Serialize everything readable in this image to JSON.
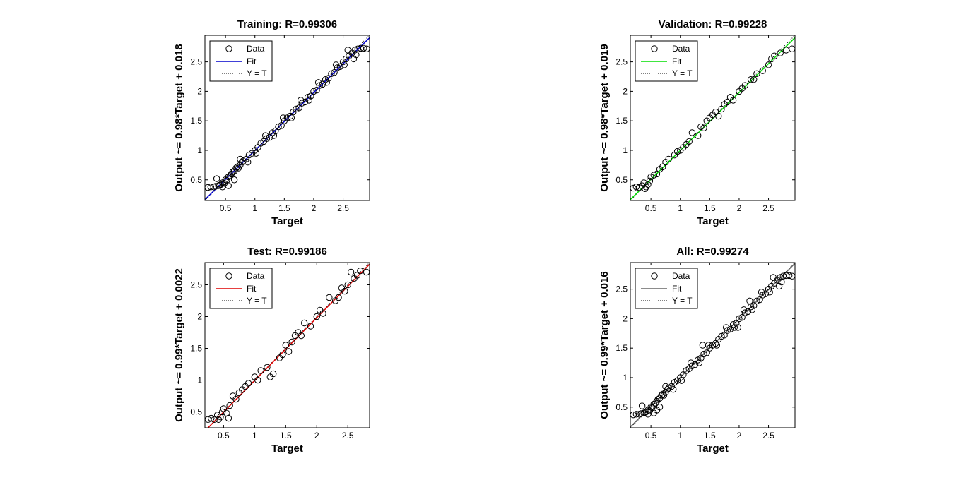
{
  "figure": {
    "background": "#ffffff"
  },
  "chart_data": [
    {
      "type": "scatter",
      "title": "Training: R=0.99306",
      "xlabel": "Target",
      "ylabel": "Output ~= 0.98*Target + 0.018",
      "xlim": [
        0.15,
        2.95
      ],
      "ylim": [
        0.15,
        2.95
      ],
      "xticks": [
        0.5,
        1,
        1.5,
        2,
        2.5
      ],
      "yticks": [
        0.5,
        1,
        1.5,
        2,
        2.5
      ],
      "xtick_labels": [
        "0.5",
        "1",
        "1.5",
        "2",
        "2.5"
      ],
      "ytick_labels": [
        "0.5",
        "1",
        "1.5",
        "2",
        "2.5"
      ],
      "fit": {
        "slope": 0.98,
        "intercept": 0.018,
        "color": "#0000cc"
      },
      "legend": {
        "position": "top-left",
        "entries": [
          "Data",
          "Fit",
          "Y = T"
        ]
      },
      "grid": false,
      "series": [
        {
          "name": "Data",
          "kind": "markers",
          "color": "#000000",
          "x": [
            0.2,
            0.25,
            0.3,
            0.33,
            0.38,
            0.4,
            0.42,
            0.45,
            0.48,
            0.5,
            0.52,
            0.55,
            0.58,
            0.6,
            0.62,
            0.65,
            0.68,
            0.7,
            0.72,
            0.75,
            0.78,
            0.8,
            0.85,
            0.9,
            0.95,
            1.0,
            1.05,
            1.1,
            1.15,
            1.2,
            1.25,
            1.3,
            1.35,
            1.4,
            1.45,
            1.5,
            1.55,
            1.6,
            1.65,
            1.7,
            1.75,
            1.8,
            1.85,
            1.9,
            1.95,
            2.0,
            2.05,
            2.1,
            2.15,
            2.2,
            2.25,
            2.3,
            2.35,
            2.4,
            2.45,
            2.5,
            2.55,
            2.6,
            2.65,
            2.7,
            2.75,
            2.8,
            2.85,
            2.9,
            0.35,
            0.45,
            0.55,
            0.65,
            0.75,
            0.88,
            1.02,
            1.18,
            1.32,
            1.48,
            1.62,
            1.78,
            1.92,
            2.08,
            2.22,
            2.38,
            2.52,
            2.68,
            2.58,
            2.72
          ],
          "y": [
            0.37,
            0.38,
            0.38,
            0.39,
            0.4,
            0.41,
            0.42,
            0.45,
            0.44,
            0.5,
            0.49,
            0.55,
            0.57,
            0.6,
            0.63,
            0.65,
            0.7,
            0.72,
            0.7,
            0.75,
            0.8,
            0.82,
            0.85,
            0.92,
            0.95,
            1.0,
            1.05,
            1.12,
            1.15,
            1.2,
            1.22,
            1.3,
            1.33,
            1.4,
            1.42,
            1.5,
            1.55,
            1.58,
            1.65,
            1.7,
            1.72,
            1.8,
            1.82,
            1.9,
            1.92,
            2.0,
            2.02,
            2.1,
            2.12,
            2.2,
            2.22,
            2.3,
            2.32,
            2.4,
            2.42,
            2.5,
            2.55,
            2.6,
            2.65,
            2.7,
            2.72,
            2.73,
            2.73,
            2.72,
            0.52,
            0.38,
            0.4,
            0.5,
            0.85,
            0.8,
            0.95,
            1.25,
            1.25,
            1.55,
            1.55,
            1.85,
            1.85,
            2.15,
            2.15,
            2.45,
            2.45,
            2.55,
            2.7,
            2.62
          ]
        }
      ]
    },
    {
      "type": "scatter",
      "title": "Validation: R=0.99228",
      "xlabel": "Target",
      "ylabel": "Output ~= 0.98*Target + 0.019",
      "xlim": [
        0.15,
        2.95
      ],
      "ylim": [
        0.15,
        2.95
      ],
      "xticks": [
        0.5,
        1,
        1.5,
        2,
        2.5
      ],
      "yticks": [
        0.5,
        1,
        1.5,
        2,
        2.5
      ],
      "xtick_labels": [
        "0.5",
        "1",
        "1.5",
        "2",
        "2.5"
      ],
      "ytick_labels": [
        "0.5",
        "1",
        "1.5",
        "2",
        "2.5"
      ],
      "fit": {
        "slope": 0.98,
        "intercept": 0.019,
        "color": "#00dd00"
      },
      "legend": {
        "position": "top-left",
        "entries": [
          "Data",
          "Fit",
          "Y = T"
        ]
      },
      "grid": false,
      "series": [
        {
          "name": "Data",
          "kind": "markers",
          "color": "#000000",
          "x": [
            0.2,
            0.25,
            0.3,
            0.35,
            0.38,
            0.42,
            0.45,
            0.48,
            0.5,
            0.55,
            0.6,
            0.65,
            0.7,
            0.75,
            0.8,
            0.9,
            0.95,
            1.0,
            1.05,
            1.1,
            1.2,
            1.3,
            1.35,
            1.4,
            1.45,
            1.5,
            1.55,
            1.6,
            1.7,
            1.75,
            1.8,
            1.85,
            1.9,
            2.0,
            2.05,
            2.1,
            2.2,
            2.3,
            2.4,
            2.5,
            2.55,
            2.6,
            2.7,
            2.8,
            2.9,
            0.4,
            1.15,
            1.65,
            2.25
          ],
          "y": [
            0.36,
            0.38,
            0.37,
            0.4,
            0.45,
            0.38,
            0.42,
            0.48,
            0.55,
            0.58,
            0.6,
            0.68,
            0.72,
            0.8,
            0.85,
            0.92,
            0.98,
            1.0,
            1.05,
            1.1,
            1.3,
            1.25,
            1.4,
            1.38,
            1.5,
            1.55,
            1.6,
            1.65,
            1.7,
            1.78,
            1.82,
            1.9,
            1.85,
            2.0,
            2.05,
            2.1,
            2.2,
            2.3,
            2.35,
            2.45,
            2.55,
            2.6,
            2.65,
            2.7,
            2.72,
            0.35,
            1.15,
            1.58,
            2.2
          ]
        }
      ]
    },
    {
      "type": "scatter",
      "title": "Test: R=0.99186",
      "xlabel": "Target",
      "ylabel": "Output ~= 0.99*Target + 0.0022",
      "xlim": [
        0.2,
        2.85
      ],
      "ylim": [
        0.25,
        2.85
      ],
      "xticks": [
        0.5,
        1,
        1.5,
        2,
        2.5
      ],
      "yticks": [
        0.5,
        1,
        1.5,
        2,
        2.5
      ],
      "xtick_labels": [
        "0.5",
        "1",
        "1.5",
        "2",
        "2.5"
      ],
      "ytick_labels": [
        "0.5",
        "1",
        "1.5",
        "2",
        "2.5"
      ],
      "fit": {
        "slope": 0.99,
        "intercept": 0.0022,
        "color": "#dd0000"
      },
      "legend": {
        "position": "top-left",
        "entries": [
          "Data",
          "Fit",
          "Y = T"
        ]
      },
      "grid": false,
      "series": [
        {
          "name": "Data",
          "kind": "markers",
          "color": "#000000",
          "x": [
            0.25,
            0.3,
            0.35,
            0.4,
            0.42,
            0.45,
            0.48,
            0.5,
            0.55,
            0.6,
            0.65,
            0.7,
            0.75,
            0.8,
            0.85,
            0.9,
            1.0,
            1.05,
            1.1,
            1.2,
            1.3,
            1.4,
            1.45,
            1.5,
            1.55,
            1.6,
            1.7,
            1.75,
            1.8,
            1.9,
            2.0,
            2.05,
            2.1,
            2.2,
            2.3,
            2.4,
            2.45,
            2.5,
            2.55,
            2.6,
            2.65,
            2.7,
            2.8,
            0.58,
            1.25,
            1.65,
            2.35
          ],
          "y": [
            0.38,
            0.4,
            0.38,
            0.45,
            0.38,
            0.42,
            0.5,
            0.55,
            0.48,
            0.6,
            0.75,
            0.7,
            0.8,
            0.85,
            0.9,
            0.95,
            1.05,
            1.0,
            1.15,
            1.2,
            1.1,
            1.35,
            1.4,
            1.55,
            1.45,
            1.6,
            1.75,
            1.7,
            1.9,
            1.85,
            2.0,
            2.1,
            2.05,
            2.3,
            2.25,
            2.45,
            2.4,
            2.5,
            2.7,
            2.6,
            2.65,
            2.72,
            2.7,
            0.4,
            1.05,
            1.7,
            2.3
          ]
        }
      ]
    },
    {
      "type": "scatter",
      "title": "All: R=0.99274",
      "xlabel": "Target",
      "ylabel": "Output ~= 0.99*Target + 0.016",
      "xlim": [
        0.15,
        2.95
      ],
      "ylim": [
        0.15,
        2.95
      ],
      "xticks": [
        0.5,
        1,
        1.5,
        2,
        2.5
      ],
      "yticks": [
        0.5,
        1,
        1.5,
        2,
        2.5
      ],
      "xtick_labels": [
        "0.5",
        "1",
        "1.5",
        "2",
        "2.5"
      ],
      "ytick_labels": [
        "0.5",
        "1",
        "1.5",
        "2",
        "2.5"
      ],
      "fit": {
        "slope": 0.99,
        "intercept": 0.016,
        "color": "#666666"
      },
      "legend": {
        "position": "top-left",
        "entries": [
          "Data",
          "Fit",
          "Y = T"
        ]
      },
      "grid": false,
      "series": [
        {
          "name": "Data",
          "kind": "markers",
          "color": "#000000",
          "x": [
            0.2,
            0.25,
            0.3,
            0.33,
            0.38,
            0.4,
            0.42,
            0.45,
            0.48,
            0.5,
            0.52,
            0.55,
            0.58,
            0.6,
            0.62,
            0.65,
            0.68,
            0.7,
            0.72,
            0.75,
            0.78,
            0.8,
            0.85,
            0.9,
            0.95,
            1.0,
            1.05,
            1.1,
            1.15,
            1.2,
            1.25,
            1.3,
            1.35,
            1.4,
            1.45,
            1.5,
            1.55,
            1.6,
            1.65,
            1.7,
            1.75,
            1.8,
            1.85,
            1.9,
            1.95,
            2.0,
            2.05,
            2.1,
            2.15,
            2.2,
            2.25,
            2.3,
            2.35,
            2.4,
            2.45,
            2.5,
            2.55,
            2.6,
            2.65,
            2.7,
            2.75,
            2.8,
            2.85,
            2.9,
            0.35,
            0.45,
            0.55,
            0.65,
            0.75,
            0.88,
            1.02,
            1.18,
            1.32,
            1.48,
            1.62,
            1.78,
            1.92,
            2.08,
            2.22,
            2.38,
            2.52,
            2.68,
            2.58,
            2.72,
            0.6,
            1.38,
            1.98,
            2.18
          ],
          "y": [
            0.37,
            0.38,
            0.38,
            0.39,
            0.4,
            0.41,
            0.42,
            0.45,
            0.44,
            0.5,
            0.49,
            0.55,
            0.57,
            0.6,
            0.63,
            0.65,
            0.7,
            0.72,
            0.7,
            0.75,
            0.8,
            0.82,
            0.85,
            0.92,
            0.95,
            1.0,
            1.05,
            1.12,
            1.15,
            1.2,
            1.22,
            1.3,
            1.33,
            1.4,
            1.42,
            1.5,
            1.55,
            1.58,
            1.65,
            1.7,
            1.72,
            1.8,
            1.82,
            1.9,
            1.92,
            2.0,
            2.02,
            2.1,
            2.12,
            2.2,
            2.22,
            2.3,
            2.32,
            2.4,
            2.42,
            2.5,
            2.55,
            2.6,
            2.65,
            2.7,
            2.72,
            2.73,
            2.73,
            2.72,
            0.52,
            0.38,
            0.4,
            0.5,
            0.85,
            0.8,
            0.95,
            1.25,
            1.25,
            1.55,
            1.55,
            1.85,
            1.85,
            2.15,
            2.15,
            2.45,
            2.45,
            2.55,
            2.7,
            2.62,
            0.45,
            1.55,
            1.85,
            2.3
          ]
        }
      ]
    }
  ]
}
